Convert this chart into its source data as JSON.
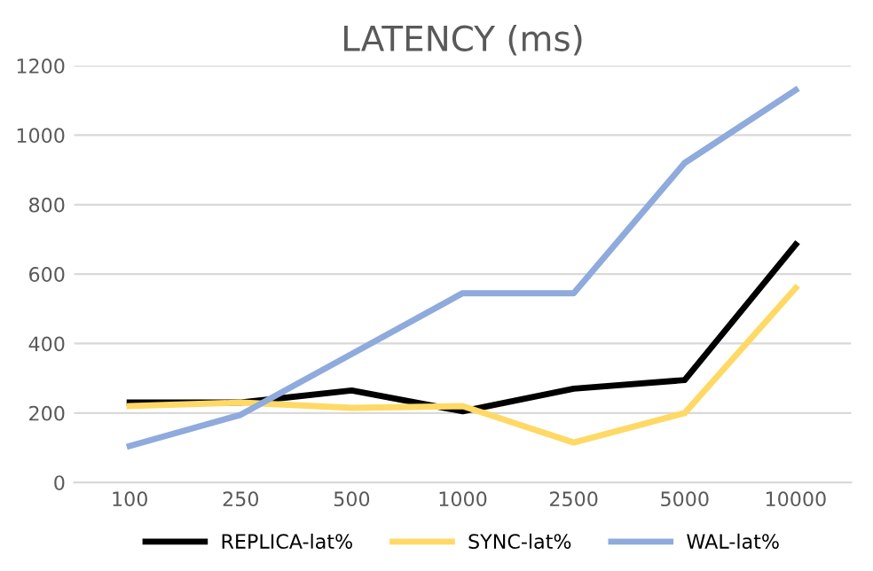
{
  "chart_data": {
    "type": "line",
    "title": "LATENCY (ms)",
    "categories": [
      "100",
      "250",
      "500",
      "1000",
      "2500",
      "5000",
      "10000"
    ],
    "series": [
      {
        "name": "REPLICA-lat%",
        "color": "#000000",
        "values": [
          230,
          230,
          265,
          205,
          270,
          295,
          685
        ]
      },
      {
        "name": "SYNC-lat%",
        "color": "#ffd966",
        "values": [
          220,
          230,
          215,
          220,
          115,
          200,
          560
        ]
      },
      {
        "name": "WAL-lat%",
        "color": "#8faadc",
        "values": [
          105,
          195,
          370,
          545,
          545,
          920,
          1130
        ]
      }
    ],
    "ylim": [
      0,
      1200
    ],
    "yticks": [
      0,
      200,
      400,
      600,
      800,
      1000,
      1200
    ],
    "grid": "y",
    "legend": "bottom",
    "marker": "none",
    "line_style": "solid"
  }
}
